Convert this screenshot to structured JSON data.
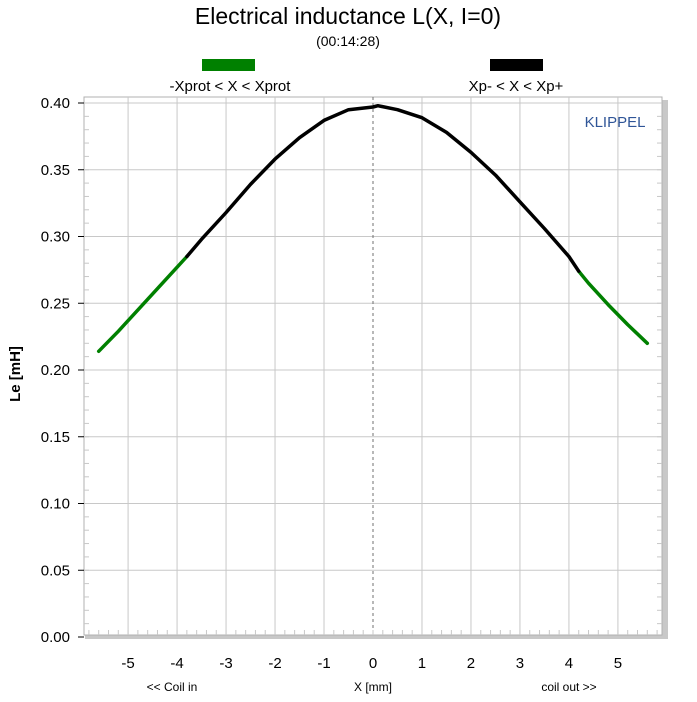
{
  "chart_data": {
    "type": "line",
    "title": "Electrical inductance L(X, I=0)",
    "subtitle": "(00:14:28)",
    "xlabel": "X [mm]",
    "x_left_note": "<< Coil in",
    "x_right_note": "coil out >>",
    "ylabel": "Le [mH]",
    "watermark": "KLIPPEL",
    "xlim": [
      -5.9,
      5.9
    ],
    "ylim": [
      0.0,
      0.4
    ],
    "x_ticks": [
      -5,
      -4,
      -3,
      -2,
      -1,
      0,
      1,
      2,
      3,
      4,
      5
    ],
    "x_tick_labels": [
      "-5",
      "-4",
      "-3",
      "-2",
      "-1",
      "0",
      "1",
      "2",
      "3",
      "4",
      "5"
    ],
    "y_ticks": [
      0.0,
      0.05,
      0.1,
      0.15,
      0.2,
      0.25,
      0.3,
      0.35,
      0.4
    ],
    "y_tick_labels": [
      "0.00",
      "0.05",
      "0.10",
      "0.15",
      "0.20",
      "0.25",
      "0.30",
      "0.35",
      "0.40"
    ],
    "grid": true,
    "legend_position": "top",
    "vertical_marker_x": 0,
    "series": [
      {
        "name": "-Xprot < X < Xprot",
        "color": "#008000",
        "x": [
          -5.6,
          -5.2,
          -4.8,
          -4.4,
          -4.0,
          -3.8,
          4.2,
          4.4,
          4.8,
          5.2,
          5.6
        ],
        "y": [
          0.214,
          0.229,
          0.245,
          0.261,
          0.277,
          0.285,
          0.274,
          0.265,
          0.249,
          0.234,
          0.22
        ]
      },
      {
        "name": "Xp- < X < Xp+",
        "color": "#000000",
        "x": [
          -3.8,
          -3.5,
          -3.0,
          -2.5,
          -2.0,
          -1.5,
          -1.0,
          -0.5,
          0.0,
          0.1,
          0.5,
          1.0,
          1.5,
          2.0,
          2.5,
          3.0,
          3.5,
          4.0,
          4.2
        ],
        "y": [
          0.285,
          0.298,
          0.318,
          0.339,
          0.358,
          0.374,
          0.387,
          0.395,
          0.397,
          0.398,
          0.395,
          0.389,
          0.378,
          0.363,
          0.346,
          0.326,
          0.306,
          0.285,
          0.274
        ]
      }
    ]
  }
}
